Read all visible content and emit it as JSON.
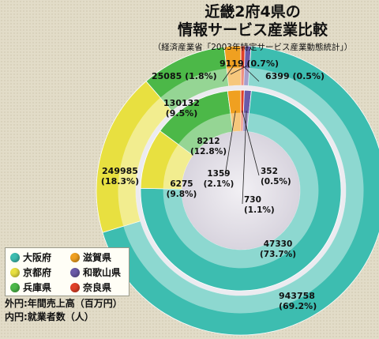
{
  "header": {
    "title_line1": "近畿2府4県の",
    "title_line2": "情報サービス産業比較",
    "source": "（経済産業省「2003年特定サービス産業動態統計」）"
  },
  "legend": {
    "items": [
      {
        "label": "大阪府",
        "color": "#3dbdb0"
      },
      {
        "label": "滋賀県",
        "color": "#f0a020"
      },
      {
        "label": "京都府",
        "color": "#e8e040"
      },
      {
        "label": "和歌山県",
        "color": "#6a5aa8"
      },
      {
        "label": "兵庫県",
        "color": "#4cb848"
      },
      {
        "label": "奈良県",
        "color": "#e04028"
      }
    ]
  },
  "notes": {
    "outer": "外円:年間売上高（百万円）",
    "inner": "内円:就業者数（人）"
  },
  "chart_data": {
    "type": "donut",
    "categories": [
      "大阪府",
      "兵庫県",
      "京都府",
      "滋賀県",
      "和歌山県",
      "奈良県"
    ],
    "series": [
      {
        "values": [
          943758,
          130132,
          249985,
          25085,
          9119,
          6399
        ],
        "labels": [
          "943758\n(69.2%)",
          "130132\n(9.5%)",
          "249985\n(18.3%)",
          "25085 (1.8%)",
          "9119 (0.7%)",
          "6399 (0.5%)"
        ]
      },
      {
        "values": [
          47330,
          8212,
          6275,
          1359,
          730,
          352
        ],
        "labels": [
          "47330\n(73.7%)",
          "8212\n(12.8%)",
          "6275\n(9.8%)",
          "1359\n(2.1%)",
          "730\n(1.1%)",
          "352\n(0.5%)"
        ]
      }
    ],
    "outer_order": [
      "奈良県",
      "和歌山県",
      "大阪府",
      "京都府",
      "兵庫県",
      "滋賀県"
    ],
    "inner_order": [
      "奈良県",
      "和歌山県",
      "大阪府",
      "京都府",
      "兵庫県",
      "滋賀県"
    ]
  }
}
